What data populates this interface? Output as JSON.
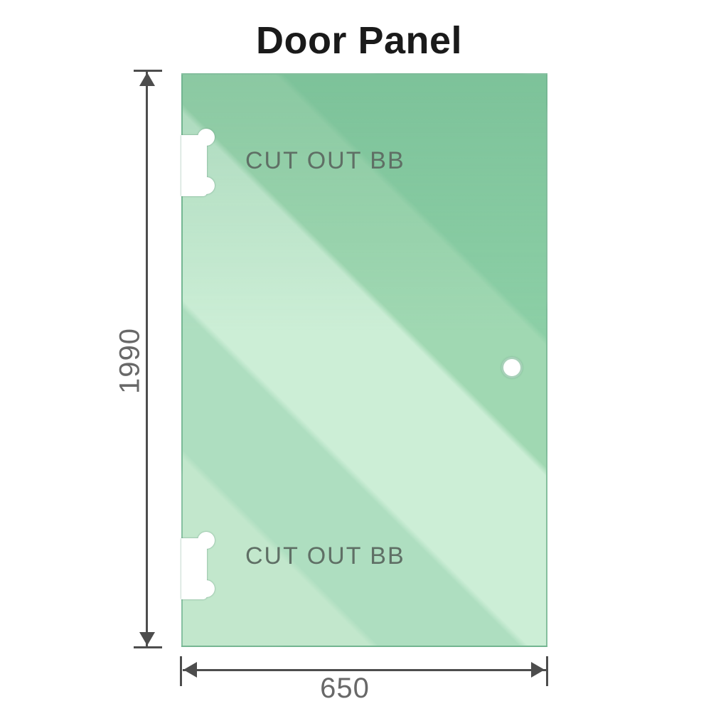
{
  "title": "Door Panel",
  "dimensions": {
    "height": "1990",
    "width": "650"
  },
  "panel": {
    "cutout_top_label": "CUT OUT BB",
    "cutout_bottom_label": "CUT OUT BB"
  },
  "colors": {
    "glass_base": "#8ccfa6",
    "glass_highlight": "#cceed6",
    "glass_edge": "#6fb08e",
    "dimension_line": "#4d4d4d",
    "dimension_text": "#686868",
    "cutout_label_text": "#5f6f65",
    "title_text": "#1a1a1a"
  }
}
